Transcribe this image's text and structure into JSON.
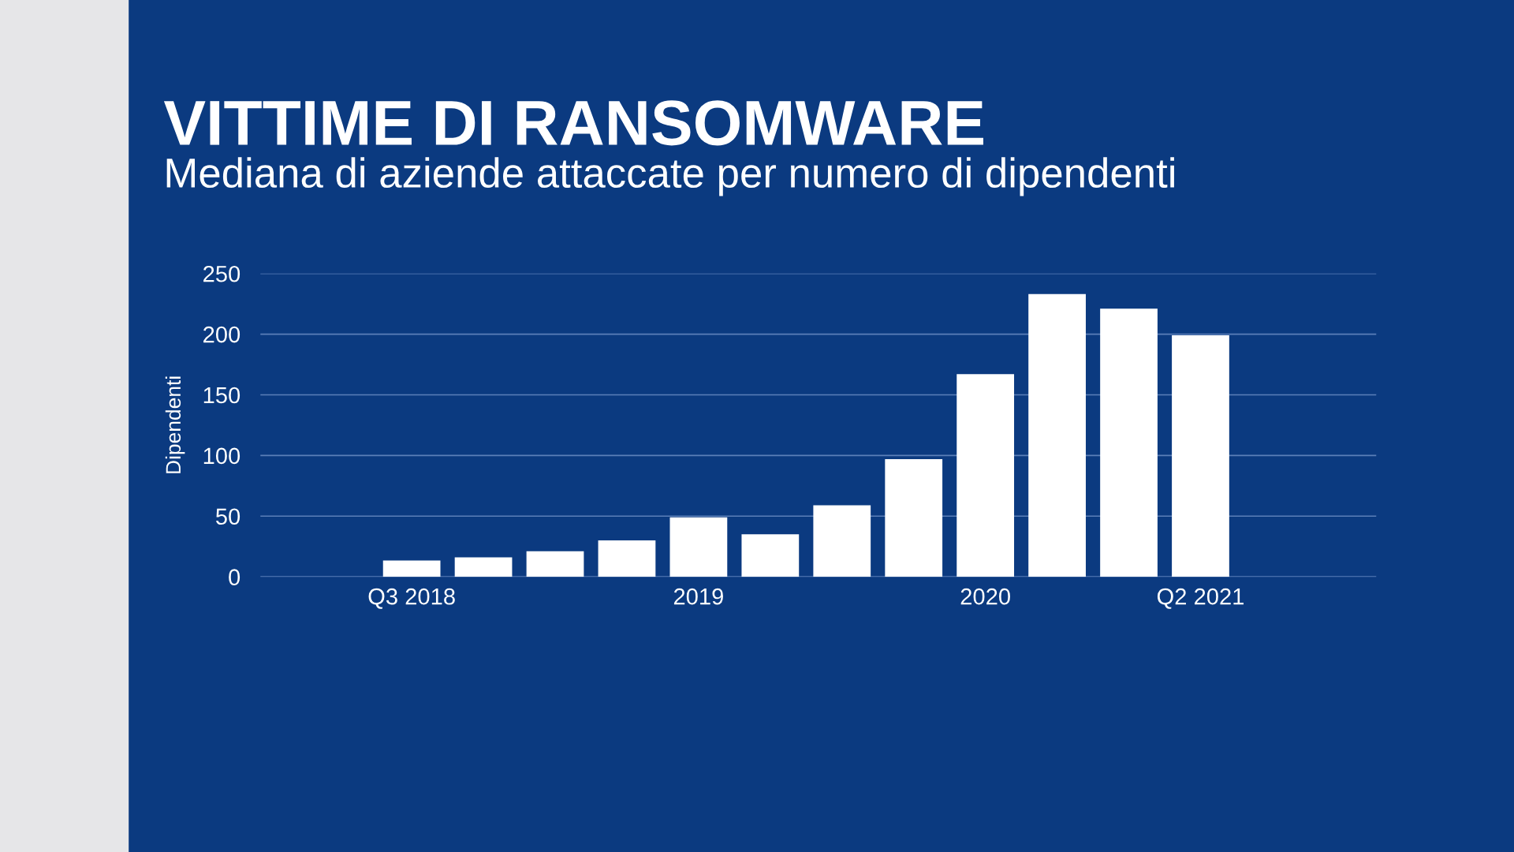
{
  "chart_data": {
    "type": "bar",
    "title": "VITTIME DI RANSOMWARE",
    "subtitle": "Mediana di aziende attaccate per numero di dipendenti",
    "ylabel": "Dipendenti",
    "categories": [
      "Q3 2018",
      null,
      null,
      null,
      "2019",
      null,
      null,
      null,
      "2020",
      null,
      null,
      "Q2 2021"
    ],
    "values": [
      13.5,
      16,
      21,
      30,
      49,
      35,
      59,
      97,
      167,
      233,
      221,
      199
    ],
    "color": "#ffffff",
    "ylim": [
      0,
      250
    ],
    "yticks": [
      0,
      50,
      100,
      150,
      200,
      250
    ],
    "grid": "y"
  }
}
